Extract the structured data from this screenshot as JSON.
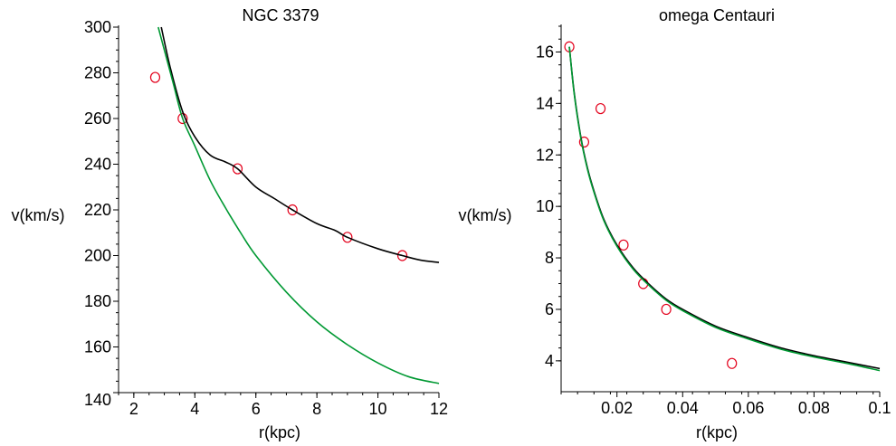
{
  "chart_data": [
    {
      "type": "scatter",
      "title": "NGC 3379",
      "xlabel": "r(kpc)",
      "ylabel": "v(km/s)",
      "xlim": [
        1.5,
        12
      ],
      "ylim": [
        140,
        300
      ],
      "x_major_ticks": [
        2,
        4,
        6,
        8,
        10,
        12
      ],
      "y_major_ticks": [
        140,
        160,
        180,
        200,
        220,
        240,
        260,
        280,
        300
      ],
      "grid": false,
      "series": [
        {
          "kind": "points",
          "marker": "open-circle",
          "color": "#e3001b",
          "x": [
            2.7,
            3.6,
            5.4,
            7.2,
            9.0,
            10.8
          ],
          "y": [
            278,
            260,
            238,
            220,
            208,
            200
          ]
        },
        {
          "kind": "line",
          "color": "#000000",
          "x": [
            2.9,
            3.2,
            3.6,
            4.0,
            4.5,
            5.0,
            5.4,
            6.0,
            6.6,
            7.2,
            8.0,
            8.6,
            9.0,
            10.0,
            10.8,
            11.4,
            12.0
          ],
          "y": [
            300,
            282,
            263,
            252,
            244,
            241,
            238,
            230,
            225,
            220,
            214,
            211,
            208,
            203,
            200,
            198,
            197
          ]
        },
        {
          "kind": "line",
          "color": "#009933",
          "x": [
            2.8,
            3.0,
            3.3,
            3.6,
            4.0,
            4.5,
            5.0,
            5.5,
            6.0,
            7.0,
            8.0,
            9.0,
            10.0,
            11.0,
            12.0
          ],
          "y": [
            300,
            290,
            275,
            260,
            248,
            233,
            221,
            210,
            200,
            184,
            171,
            161,
            153,
            147,
            144
          ]
        }
      ]
    },
    {
      "type": "scatter",
      "title": "omega Centauri",
      "xlabel": "r(kpc)",
      "ylabel": "v(km/s)",
      "xlim": [
        0.003,
        0.1
      ],
      "ylim": [
        2.8,
        17
      ],
      "x_major_ticks": [
        0.02,
        0.04,
        0.06,
        0.08,
        0.1
      ],
      "x_tick_labels": [
        "0.02",
        "0.04",
        "0.06",
        "0.08",
        "0.1"
      ],
      "y_major_ticks": [
        4,
        6,
        8,
        10,
        12,
        14,
        16
      ],
      "grid": false,
      "series": [
        {
          "kind": "points",
          "marker": "open-circle",
          "color": "#e3001b",
          "x": [
            0.0055,
            0.01,
            0.015,
            0.022,
            0.028,
            0.035,
            0.055
          ],
          "y": [
            16.2,
            12.5,
            13.8,
            8.5,
            7.0,
            6.0,
            3.9
          ]
        },
        {
          "kind": "line",
          "color": "#000000",
          "x": [
            0.0055,
            0.007,
            0.009,
            0.011,
            0.013,
            0.016,
            0.02,
            0.025,
            0.03,
            0.035,
            0.04,
            0.05,
            0.06,
            0.07,
            0.08,
            0.09,
            0.1
          ],
          "y": [
            16.2,
            14.4,
            12.7,
            11.5,
            10.6,
            9.5,
            8.5,
            7.6,
            6.95,
            6.4,
            6.0,
            5.35,
            4.9,
            4.5,
            4.2,
            3.95,
            3.7
          ]
        },
        {
          "kind": "line",
          "color": "#009933",
          "x": [
            0.0055,
            0.007,
            0.009,
            0.011,
            0.013,
            0.016,
            0.02,
            0.025,
            0.03,
            0.035,
            0.04,
            0.05,
            0.06,
            0.07,
            0.08,
            0.09,
            0.1
          ],
          "y": [
            16.2,
            14.35,
            12.65,
            11.45,
            10.55,
            9.45,
            8.45,
            7.55,
            6.9,
            6.35,
            5.95,
            5.3,
            4.85,
            4.45,
            4.15,
            3.9,
            3.62
          ]
        }
      ]
    }
  ]
}
